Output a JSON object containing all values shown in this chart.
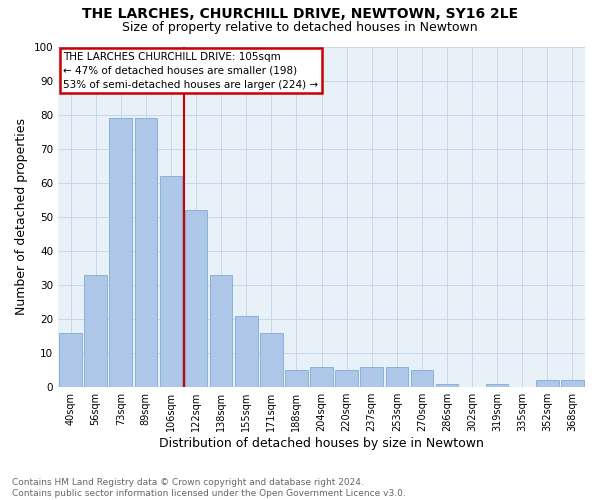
{
  "title": "THE LARCHES, CHURCHILL DRIVE, NEWTOWN, SY16 2LE",
  "subtitle": "Size of property relative to detached houses in Newtown",
  "xlabel": "Distribution of detached houses by size in Newtown",
  "ylabel": "Number of detached properties",
  "footer": "Contains HM Land Registry data © Crown copyright and database right 2024.\nContains public sector information licensed under the Open Government Licence v3.0.",
  "bar_labels": [
    "40sqm",
    "56sqm",
    "73sqm",
    "89sqm",
    "106sqm",
    "122sqm",
    "138sqm",
    "155sqm",
    "171sqm",
    "188sqm",
    "204sqm",
    "220sqm",
    "237sqm",
    "253sqm",
    "270sqm",
    "286sqm",
    "302sqm",
    "319sqm",
    "335sqm",
    "352sqm",
    "368sqm"
  ],
  "bar_values": [
    16,
    33,
    79,
    79,
    62,
    52,
    33,
    21,
    16,
    5,
    6,
    5,
    6,
    6,
    5,
    1,
    0,
    1,
    0,
    2,
    2
  ],
  "bar_color": "#aec6e8",
  "bar_edge_color": "#7aadd4",
  "grid_color": "#c8d8e8",
  "background_color": "#e8f0f8",
  "vline_color": "#cc0000",
  "annotation_text": "THE LARCHES CHURCHILL DRIVE: 105sqm\n← 47% of detached houses are smaller (198)\n53% of semi-detached houses are larger (224) →",
  "annotation_box_color": "#cc0000",
  "ylim": [
    0,
    100
  ],
  "yticks": [
    0,
    10,
    20,
    30,
    40,
    50,
    60,
    70,
    80,
    90,
    100
  ],
  "title_fontsize": 10,
  "subtitle_fontsize": 9,
  "ylabel_fontsize": 9,
  "xlabel_fontsize": 9,
  "tick_fontsize": 7,
  "footer_fontsize": 6.5,
  "footer_color": "#666666",
  "vline_x": 4.5
}
